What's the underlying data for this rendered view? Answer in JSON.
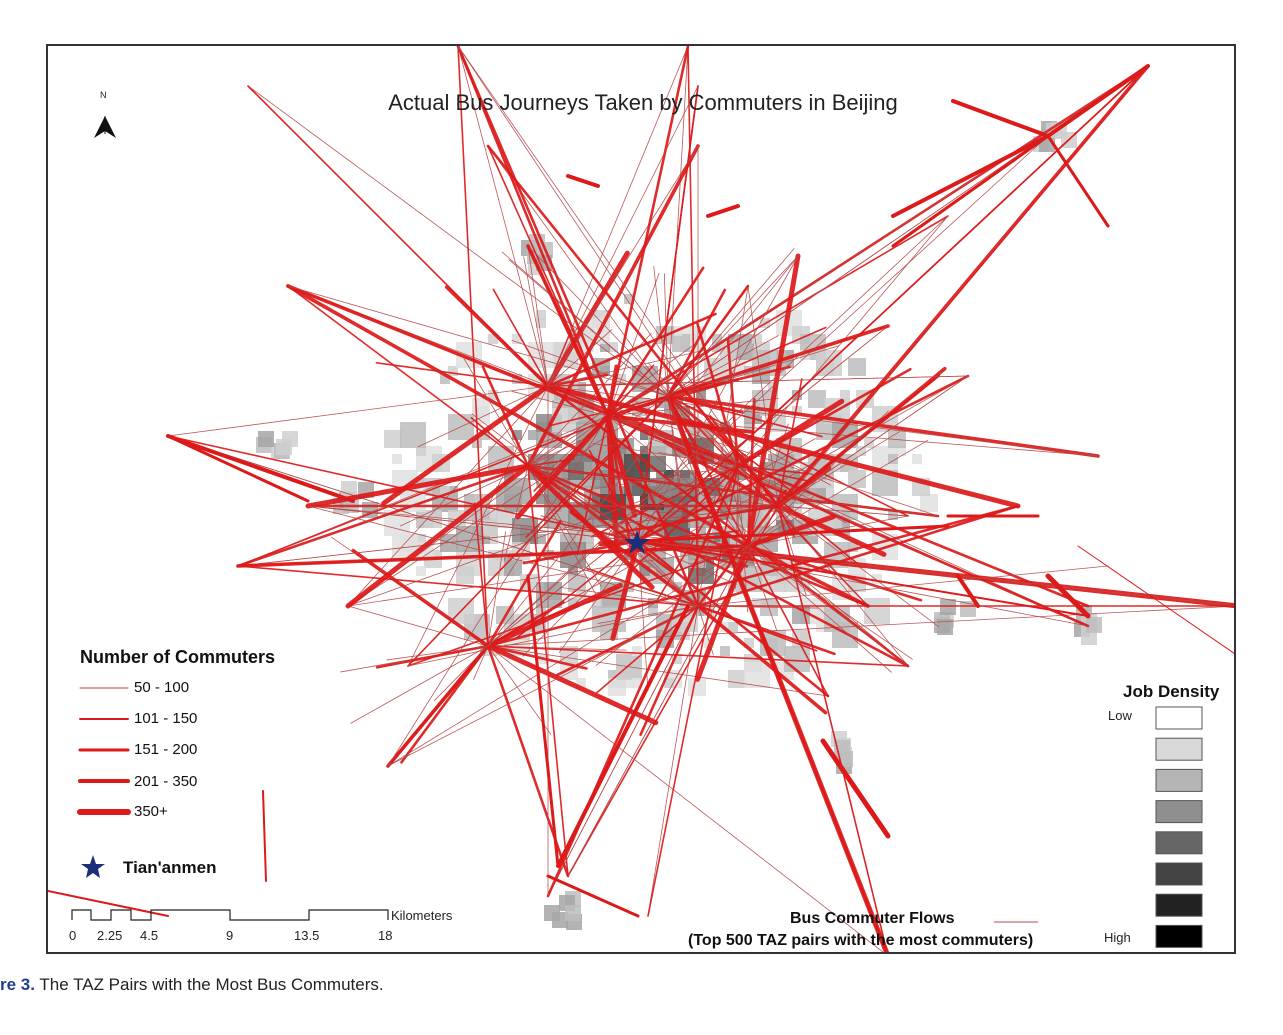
{
  "title": "Actual Bus Journeys Taken by Commuters in Beijing",
  "north_label": "N",
  "legend_commuters": {
    "title": "Number of Commuters",
    "items": [
      {
        "label": "50 - 100",
        "width": 1
      },
      {
        "label": "101 - 150",
        "width": 2
      },
      {
        "label": "151 - 200",
        "width": 3
      },
      {
        "label": "201 - 350",
        "width": 4
      },
      {
        "label": "350+",
        "width": 6
      }
    ]
  },
  "tiananmen_label": "Tian'anmen",
  "scale_bar": {
    "unit": "Kilometers",
    "ticks": [
      "0",
      "2.25",
      "4.5",
      "9",
      "13.5",
      "18"
    ]
  },
  "job_density": {
    "title": "Job Density",
    "low_label": "Low",
    "high_label": "High",
    "classes": [
      "#ffffff",
      "#d9d9d9",
      "#b5b5b5",
      "#8f8f8f",
      "#666666",
      "#444444",
      "#222222",
      "#000000"
    ]
  },
  "flows_legend": {
    "line1": "Bus Commuter Flows",
    "line2": "(Top 500 TAZ pairs with the most commuters)"
  },
  "caption": {
    "prefix": "re 3.",
    "text": "The TAZ Pairs with the Most Bus Commuters."
  },
  "colors": {
    "flow": "#dd1a1a",
    "flow_thin": "#b84a4a",
    "star": "#1a2f7a"
  }
}
